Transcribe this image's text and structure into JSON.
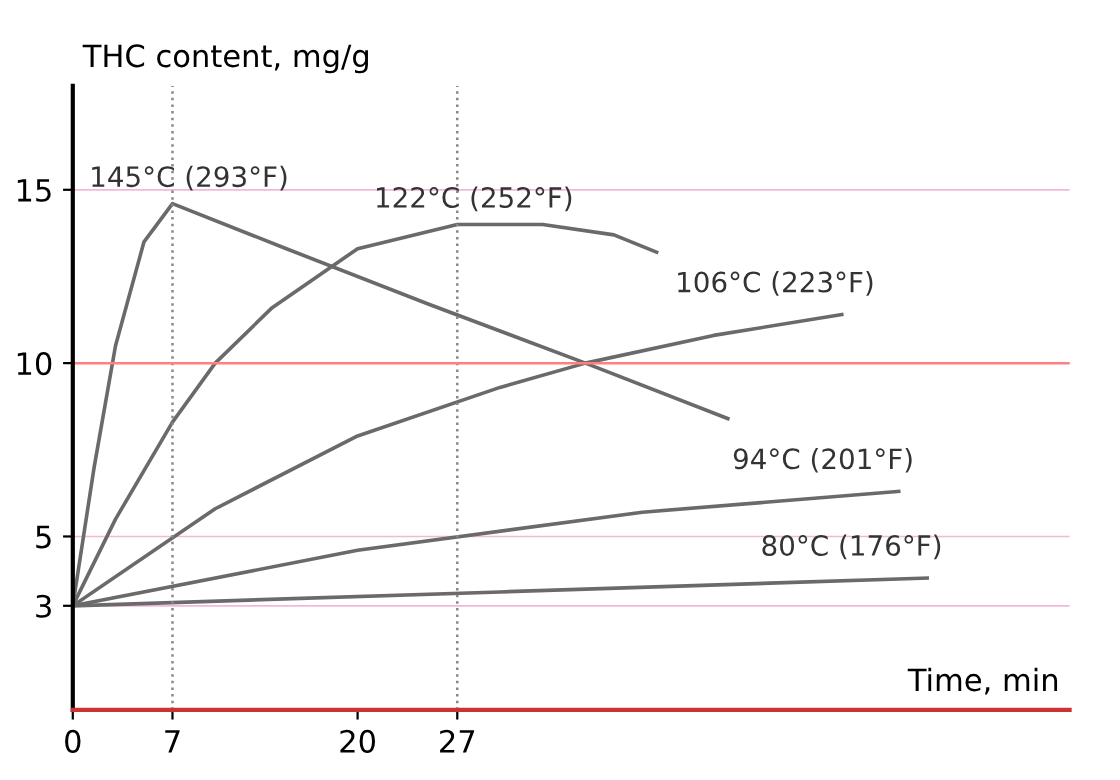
{
  "chart_data": {
    "type": "line",
    "xlabel": "Time, min",
    "ylabel": "THC content, mg/g",
    "xlim": [
      0,
      70
    ],
    "ylim": [
      0,
      18
    ],
    "xticks": [
      0,
      7,
      20,
      27
    ],
    "yticks": [
      3,
      5,
      10,
      15
    ],
    "grid": "y",
    "marker": "none",
    "line_style": "solid",
    "series": [
      {
        "color": "#6a6a6a",
        "x": [
          0,
          1.5,
          3,
          5,
          7,
          15,
          25,
          36,
          46
        ],
        "values": [
          3,
          7,
          10.5,
          13.5,
          14.6,
          13.3,
          11.7,
          10,
          8.4
        ]
      },
      {
        "color": "#6a6a6a",
        "x": [
          0,
          3,
          7,
          10,
          14,
          20,
          27,
          33,
          38,
          41
        ],
        "values": [
          3,
          5.5,
          8.3,
          10,
          11.6,
          13.3,
          14,
          14,
          13.7,
          13.2
        ]
      },
      {
        "color": "#6a6a6a",
        "x": [
          0,
          10,
          20,
          30,
          36,
          45,
          54
        ],
        "values": [
          3,
          5.8,
          7.9,
          9.3,
          10,
          10.8,
          11.4
        ]
      },
      {
        "color": "#6a6a6a",
        "x": [
          0,
          20,
          40,
          58
        ],
        "values": [
          3,
          4.6,
          5.7,
          6.3
        ]
      },
      {
        "color": "#6a6a6a",
        "x": [
          0,
          30,
          60
        ],
        "values": [
          3,
          3.4,
          3.8
        ]
      }
    ],
    "ref_lines": [
      {
        "axis": "x",
        "value": 7,
        "label": null,
        "color": "#888888",
        "line_style": "dotted"
      },
      {
        "axis": "x",
        "value": 27,
        "label": null,
        "color": "#888888",
        "line_style": "dotted"
      },
      {
        "axis": "y",
        "value": 10,
        "label": null,
        "color": "#ff8080",
        "line_style": "solid"
      }
    ],
    "annotations": [
      "145°C (293°F)",
      "122°C (252°F)",
      "106°C (223°F)",
      "94°C (201°F)",
      "80°C (176°F)"
    ]
  }
}
